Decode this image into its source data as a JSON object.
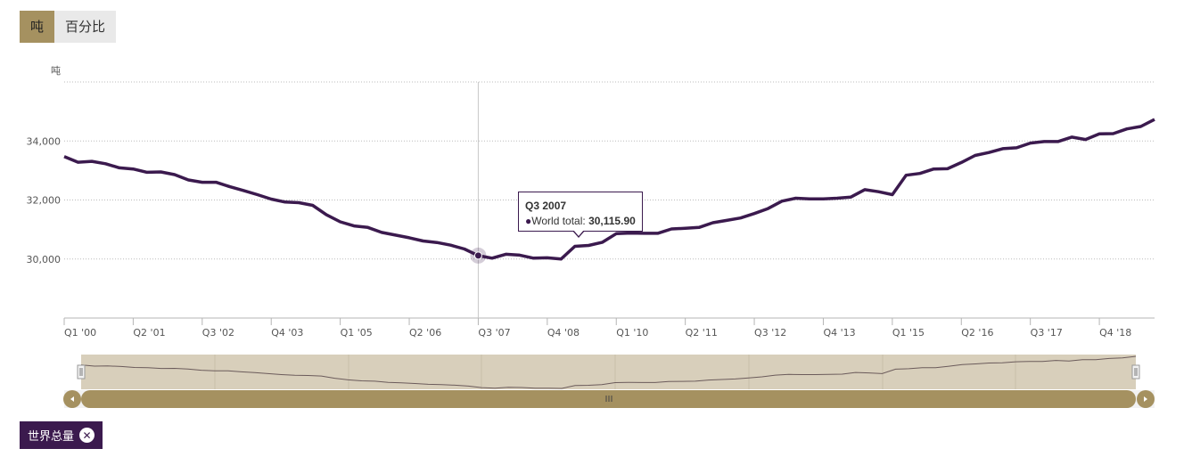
{
  "unit_toggle": {
    "ton_label": "吨",
    "percent_label": "百分比"
  },
  "legend": {
    "series_label": "世界总量"
  },
  "tooltip": {
    "title": "Q3 2007",
    "series_name": "World total:",
    "value": "30,115.90"
  },
  "colors": {
    "line": "#3b1a4e",
    "accent": "#a59160",
    "navigator_bg": "#d8cfbb"
  },
  "chart_data": {
    "type": "line",
    "title": "",
    "ylabel": "吨",
    "xlabel": "",
    "ylim": [
      28000,
      36000
    ],
    "yticks": [
      30000,
      32000,
      34000
    ],
    "ytick_labels": [
      "30,000",
      "32,000",
      "34,000"
    ],
    "xtick_labels": [
      "Q1 '00",
      "Q2 '01",
      "Q3 '02",
      "Q4 '03",
      "Q1 '05",
      "Q2 '06",
      "Q3 '07",
      "Q4 '08",
      "Q1 '10",
      "Q2 '11",
      "Q3 '12",
      "Q4 '13",
      "Q1 '15",
      "Q2 '16",
      "Q3 '17",
      "Q4 '18"
    ],
    "xtick_index": [
      0,
      5,
      10,
      15,
      20,
      25,
      30,
      35,
      40,
      45,
      50,
      55,
      60,
      65,
      70,
      75
    ],
    "series": [
      {
        "name": "World total",
        "start": "Q1 2000",
        "values": [
          33470,
          33280,
          33310,
          33230,
          33090,
          33050,
          32940,
          32950,
          32860,
          32680,
          32600,
          32600,
          32450,
          32320,
          32180,
          32030,
          31930,
          31910,
          31820,
          31500,
          31260,
          31120,
          31070,
          30900,
          30810,
          30720,
          30610,
          30560,
          30470,
          30340,
          30115.9,
          30030,
          30160,
          30130,
          30030,
          30040,
          30000,
          30430,
          30460,
          30570,
          30860,
          30880,
          30870,
          30870,
          31020,
          31040,
          31070,
          31230,
          31310,
          31390,
          31540,
          31710,
          31960,
          32060,
          32040,
          32040,
          32060,
          32100,
          32350,
          32280,
          32180,
          32840,
          32900,
          33050,
          33060,
          33270,
          33510,
          33610,
          33740,
          33770,
          33930,
          33980,
          33980,
          34130,
          34050,
          34240,
          34250,
          34410,
          34490,
          34730
        ]
      }
    ],
    "highlight": {
      "index": 30,
      "label": "Q3 2007",
      "value": 30115.9
    }
  }
}
